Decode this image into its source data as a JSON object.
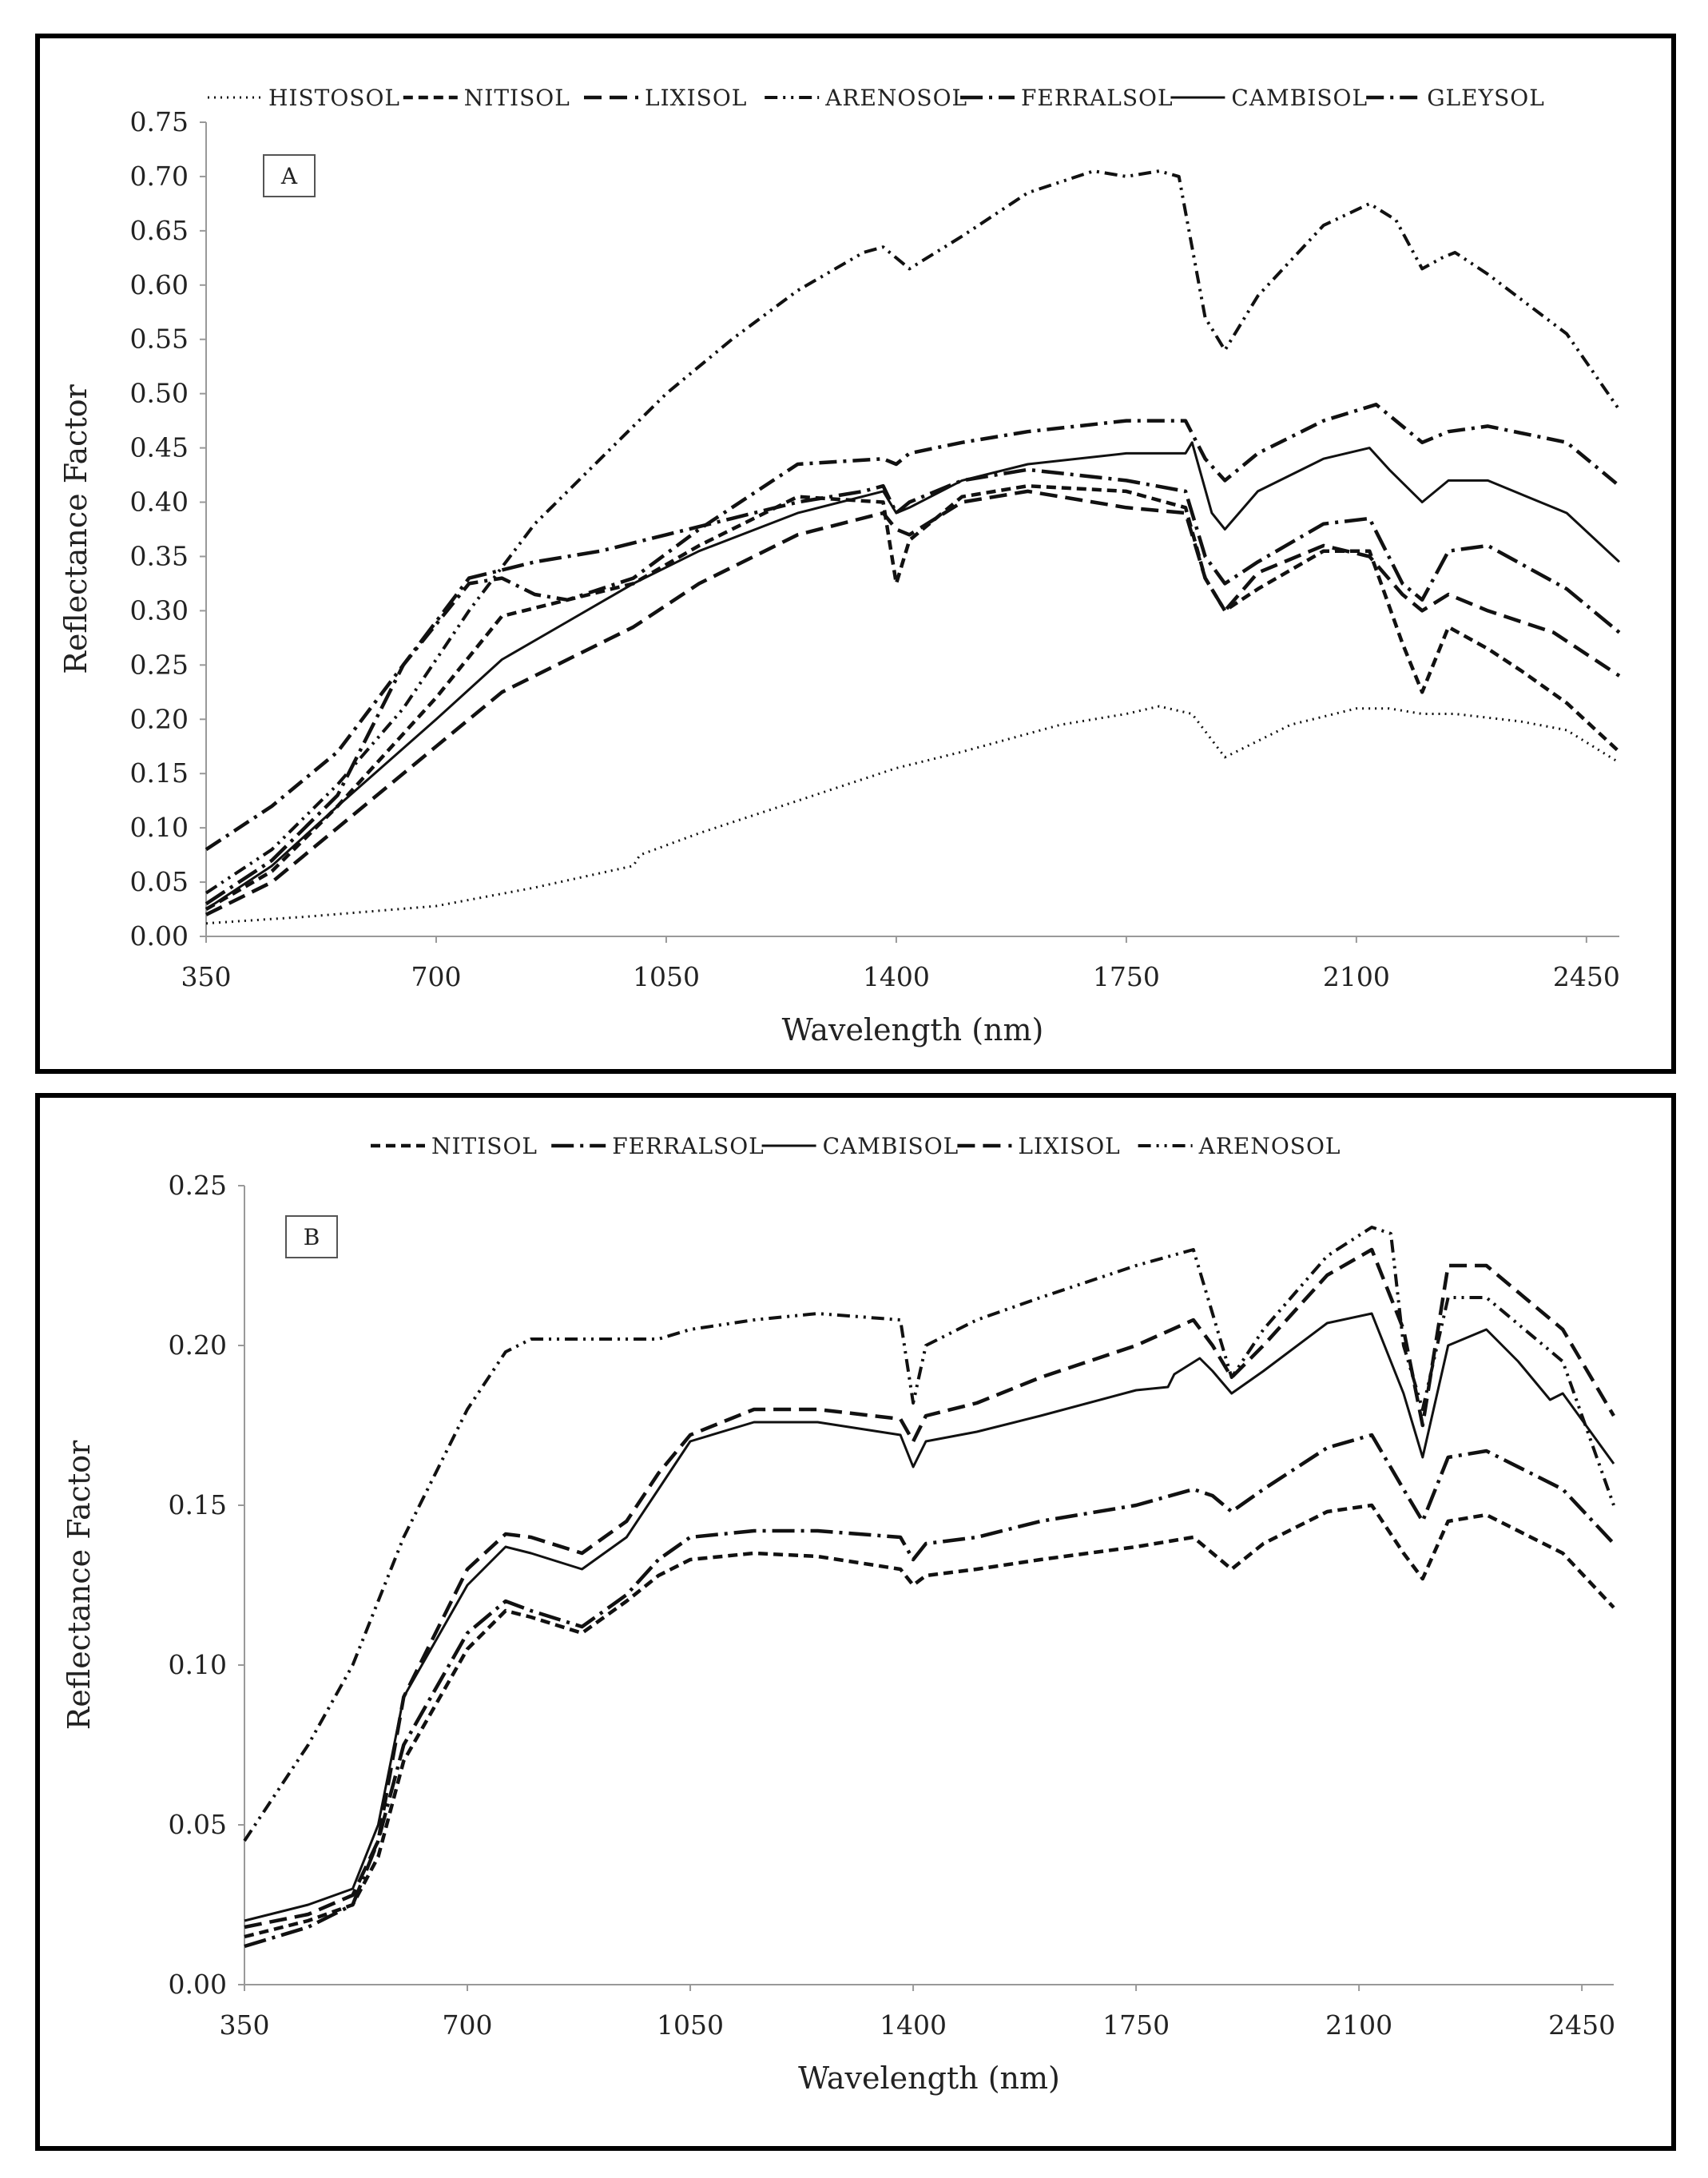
{
  "chart_data": [
    {
      "type": "line",
      "panel_label": "A",
      "xlabel": "Wavelength (nm)",
      "ylabel": "Reflectance Factor",
      "xlim": [
        350,
        2500
      ],
      "ylim": [
        0,
        0.75
      ],
      "xticks": [
        "350",
        "700",
        "1050",
        "1400",
        "1750",
        "2100",
        "2450"
      ],
      "yticks": [
        "0.00",
        "0.05",
        "0.10",
        "0.15",
        "0.20",
        "0.25",
        "0.30",
        "0.35",
        "0.40",
        "0.45",
        "0.50",
        "0.55",
        "0.60",
        "0.65",
        "0.70",
        "0.75"
      ],
      "grid": false,
      "legend_position": "top",
      "series": [
        {
          "name": "HISTOSOL",
          "x": [
            350,
            500,
            700,
            850,
            1000,
            1010,
            1100,
            1250,
            1400,
            1500,
            1650,
            1750,
            1800,
            1850,
            1900,
            2000,
            2100,
            2150,
            2200,
            2250,
            2350,
            2420,
            2500
          ],
          "y": [
            0.012,
            0.018,
            0.028,
            0.045,
            0.065,
            0.075,
            0.095,
            0.125,
            0.155,
            0.17,
            0.195,
            0.205,
            0.212,
            0.205,
            0.165,
            0.195,
            0.21,
            0.21,
            0.205,
            0.205,
            0.198,
            0.19,
            0.16
          ]
        },
        {
          "name": "NITISOL",
          "x": [
            350,
            450,
            550,
            700,
            800,
            900,
            1000,
            1100,
            1250,
            1380,
            1400,
            1420,
            1500,
            1600,
            1750,
            1840,
            1870,
            1900,
            1950,
            2050,
            2120,
            2170,
            2200,
            2240,
            2300,
            2350,
            2420,
            2500
          ],
          "y": [
            0.025,
            0.06,
            0.12,
            0.22,
            0.295,
            0.31,
            0.325,
            0.36,
            0.405,
            0.4,
            0.325,
            0.365,
            0.405,
            0.415,
            0.41,
            0.395,
            0.33,
            0.3,
            0.32,
            0.355,
            0.355,
            0.27,
            0.225,
            0.285,
            0.265,
            0.245,
            0.215,
            0.17
          ]
        },
        {
          "name": "LIXISOL",
          "x": [
            350,
            450,
            550,
            700,
            800,
            900,
            1000,
            1100,
            1250,
            1380,
            1400,
            1420,
            1500,
            1600,
            1750,
            1840,
            1870,
            1900,
            1950,
            2050,
            2120,
            2170,
            2200,
            2240,
            2300,
            2400,
            2500
          ],
          "y": [
            0.02,
            0.05,
            0.1,
            0.175,
            0.225,
            0.255,
            0.285,
            0.325,
            0.37,
            0.39,
            0.375,
            0.37,
            0.4,
            0.41,
            0.395,
            0.39,
            0.33,
            0.3,
            0.335,
            0.36,
            0.35,
            0.315,
            0.3,
            0.315,
            0.3,
            0.28,
            0.24
          ]
        },
        {
          "name": "ARENOSOL",
          "x": [
            350,
            450,
            550,
            650,
            750,
            850,
            950,
            1050,
            1150,
            1250,
            1350,
            1380,
            1420,
            1500,
            1600,
            1700,
            1750,
            1800,
            1830,
            1870,
            1900,
            1950,
            2050,
            2120,
            2160,
            2200,
            2230,
            2250,
            2300,
            2420,
            2500
          ],
          "y": [
            0.04,
            0.08,
            0.14,
            0.21,
            0.3,
            0.38,
            0.44,
            0.5,
            0.55,
            0.595,
            0.63,
            0.635,
            0.615,
            0.645,
            0.685,
            0.705,
            0.7,
            0.705,
            0.7,
            0.57,
            0.54,
            0.59,
            0.655,
            0.675,
            0.66,
            0.615,
            0.625,
            0.63,
            0.61,
            0.555,
            0.485
          ]
        },
        {
          "name": "FERRALSOL",
          "x": [
            350,
            450,
            550,
            650,
            750,
            850,
            950,
            1050,
            1150,
            1250,
            1350,
            1380,
            1400,
            1420,
            1500,
            1600,
            1750,
            1840,
            1870,
            1900,
            1950,
            2050,
            2120,
            2170,
            2200,
            2240,
            2300,
            2420,
            2500
          ],
          "y": [
            0.03,
            0.07,
            0.13,
            0.25,
            0.33,
            0.345,
            0.355,
            0.37,
            0.385,
            0.4,
            0.41,
            0.415,
            0.39,
            0.4,
            0.42,
            0.43,
            0.42,
            0.41,
            0.35,
            0.325,
            0.345,
            0.38,
            0.385,
            0.325,
            0.31,
            0.355,
            0.36,
            0.32,
            0.28
          ]
        },
        {
          "name": "CAMBISOL",
          "x": [
            350,
            450,
            550,
            700,
            800,
            900,
            1000,
            1100,
            1250,
            1380,
            1400,
            1420,
            1500,
            1600,
            1750,
            1840,
            1850,
            1880,
            1900,
            1950,
            2050,
            2120,
            2150,
            2200,
            2240,
            2300,
            2420,
            2500
          ],
          "y": [
            0.025,
            0.065,
            0.12,
            0.2,
            0.255,
            0.29,
            0.325,
            0.355,
            0.39,
            0.41,
            0.39,
            0.395,
            0.42,
            0.435,
            0.445,
            0.445,
            0.455,
            0.39,
            0.375,
            0.41,
            0.44,
            0.45,
            0.43,
            0.4,
            0.42,
            0.42,
            0.39,
            0.345
          ]
        },
        {
          "name": "GLEYSOL",
          "x": [
            350,
            450,
            550,
            650,
            750,
            800,
            850,
            900,
            1000,
            1100,
            1250,
            1380,
            1400,
            1420,
            1500,
            1600,
            1750,
            1840,
            1870,
            1900,
            1950,
            2050,
            2130,
            2170,
            2200,
            2240,
            2300,
            2420,
            2500
          ],
          "y": [
            0.08,
            0.12,
            0.17,
            0.25,
            0.325,
            0.33,
            0.315,
            0.31,
            0.33,
            0.375,
            0.435,
            0.44,
            0.435,
            0.445,
            0.455,
            0.465,
            0.475,
            0.475,
            0.44,
            0.42,
            0.445,
            0.475,
            0.49,
            0.47,
            0.455,
            0.465,
            0.47,
            0.455,
            0.415
          ]
        }
      ]
    },
    {
      "type": "line",
      "panel_label": "B",
      "xlabel": "Wavelength (nm)",
      "ylabel": "Reflectance Factor",
      "xlim": [
        350,
        2500
      ],
      "ylim": [
        0,
        0.25
      ],
      "xticks": [
        "350",
        "700",
        "1050",
        "1400",
        "1750",
        "2100",
        "2450"
      ],
      "yticks": [
        "0.00",
        "0.05",
        "0.10",
        "0.15",
        "0.20",
        "0.25"
      ],
      "grid": false,
      "legend_position": "top",
      "series": [
        {
          "name": "NITISOL",
          "x": [
            350,
            450,
            520,
            560,
            600,
            700,
            760,
            800,
            880,
            950,
            1000,
            1050,
            1150,
            1250,
            1380,
            1400,
            1420,
            1500,
            1600,
            1750,
            1840,
            1870,
            1900,
            1950,
            2050,
            2120,
            2170,
            2200,
            2240,
            2300,
            2420,
            2500
          ],
          "y": [
            0.015,
            0.02,
            0.025,
            0.04,
            0.07,
            0.105,
            0.117,
            0.115,
            0.11,
            0.12,
            0.128,
            0.133,
            0.135,
            0.134,
            0.13,
            0.125,
            0.128,
            0.13,
            0.133,
            0.137,
            0.14,
            0.135,
            0.13,
            0.138,
            0.148,
            0.15,
            0.135,
            0.127,
            0.145,
            0.147,
            0.135,
            0.118
          ]
        },
        {
          "name": "FERRALSOL",
          "x": [
            350,
            450,
            520,
            560,
            600,
            700,
            760,
            800,
            880,
            950,
            1000,
            1050,
            1150,
            1250,
            1380,
            1400,
            1420,
            1500,
            1600,
            1750,
            1840,
            1870,
            1900,
            1950,
            2050,
            2120,
            2170,
            2200,
            2240,
            2300,
            2420,
            2500
          ],
          "y": [
            0.012,
            0.018,
            0.025,
            0.045,
            0.075,
            0.11,
            0.12,
            0.117,
            0.112,
            0.122,
            0.133,
            0.14,
            0.142,
            0.142,
            0.14,
            0.133,
            0.138,
            0.14,
            0.145,
            0.15,
            0.155,
            0.153,
            0.148,
            0.155,
            0.168,
            0.172,
            0.155,
            0.145,
            0.165,
            0.167,
            0.155,
            0.138
          ]
        },
        {
          "name": "CAMBISOL",
          "x": [
            350,
            450,
            520,
            560,
            600,
            700,
            760,
            800,
            880,
            950,
            1000,
            1050,
            1150,
            1250,
            1380,
            1400,
            1420,
            1500,
            1600,
            1750,
            1800,
            1810,
            1850,
            1870,
            1900,
            1950,
            2050,
            2120,
            2170,
            2200,
            2240,
            2300,
            2350,
            2400,
            2420,
            2500
          ],
          "y": [
            0.02,
            0.025,
            0.03,
            0.05,
            0.09,
            0.125,
            0.137,
            0.135,
            0.13,
            0.14,
            0.155,
            0.17,
            0.176,
            0.176,
            0.172,
            0.162,
            0.17,
            0.173,
            0.178,
            0.186,
            0.187,
            0.191,
            0.196,
            0.192,
            0.185,
            0.192,
            0.207,
            0.21,
            0.185,
            0.165,
            0.2,
            0.205,
            0.195,
            0.183,
            0.185,
            0.163
          ]
        },
        {
          "name": "LIXISOL",
          "x": [
            350,
            450,
            520,
            560,
            600,
            700,
            760,
            800,
            880,
            950,
            1000,
            1050,
            1150,
            1250,
            1380,
            1400,
            1420,
            1500,
            1600,
            1750,
            1840,
            1870,
            1900,
            1950,
            2050,
            2120,
            2170,
            2200,
            2240,
            2300,
            2420,
            2500
          ],
          "y": [
            0.018,
            0.022,
            0.028,
            0.045,
            0.09,
            0.13,
            0.141,
            0.14,
            0.135,
            0.145,
            0.16,
            0.172,
            0.18,
            0.18,
            0.177,
            0.17,
            0.178,
            0.182,
            0.19,
            0.2,
            0.208,
            0.2,
            0.19,
            0.2,
            0.222,
            0.23,
            0.205,
            0.175,
            0.225,
            0.225,
            0.205,
            0.178
          ]
        },
        {
          "name": "ARENOSOL",
          "x": [
            350,
            450,
            520,
            600,
            650,
            700,
            760,
            800,
            900,
            1000,
            1050,
            1150,
            1250,
            1380,
            1400,
            1420,
            1500,
            1600,
            1750,
            1840,
            1870,
            1900,
            1950,
            2050,
            2120,
            2150,
            2170,
            2200,
            2240,
            2300,
            2420,
            2500
          ],
          "y": [
            0.045,
            0.075,
            0.1,
            0.14,
            0.16,
            0.18,
            0.198,
            0.202,
            0.202,
            0.202,
            0.205,
            0.208,
            0.21,
            0.208,
            0.182,
            0.2,
            0.208,
            0.215,
            0.225,
            0.23,
            0.21,
            0.19,
            0.205,
            0.228,
            0.237,
            0.235,
            0.2,
            0.18,
            0.215,
            0.215,
            0.195,
            0.15
          ]
        }
      ]
    }
  ]
}
